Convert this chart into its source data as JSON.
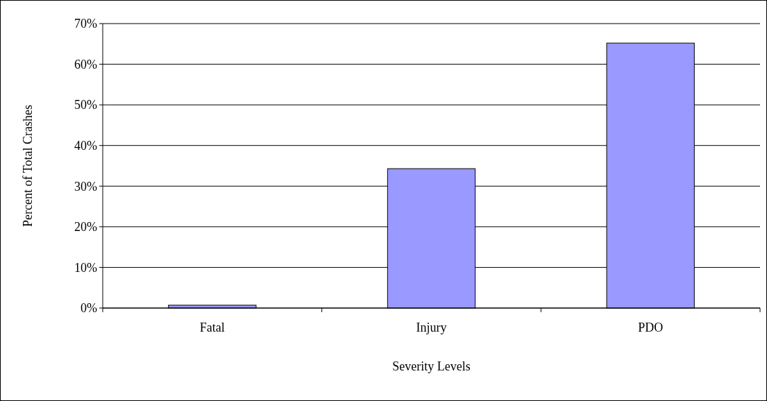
{
  "chart_data": {
    "type": "bar",
    "xlabel": "Severity Levels",
    "ylabel": "Percent of Total Crashes",
    "categories": [
      "Fatal",
      "Injury",
      "PDO"
    ],
    "values": [
      0.7,
      34.3,
      65.2
    ],
    "color": "#9999ff",
    "ylim": [
      0,
      70
    ],
    "yticks": [
      {
        "value": 0,
        "label": "0%"
      },
      {
        "value": 10,
        "label": "10%"
      },
      {
        "value": 20,
        "label": "20%"
      },
      {
        "value": 30,
        "label": "30%"
      },
      {
        "value": 40,
        "label": "40%"
      },
      {
        "value": 50,
        "label": "50%"
      },
      {
        "value": 60,
        "label": "60%"
      },
      {
        "value": 70,
        "label": "70%"
      }
    ],
    "grid": "y"
  }
}
